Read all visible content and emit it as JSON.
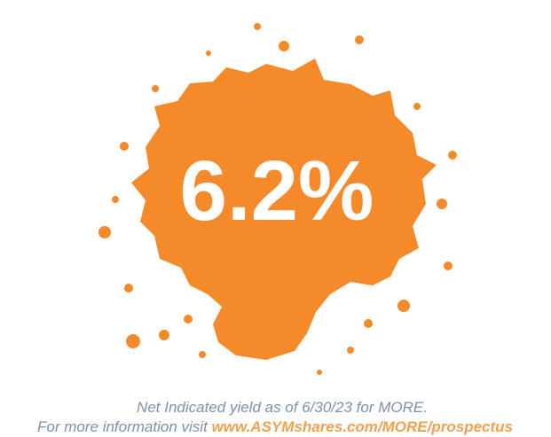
{
  "headline": "6.2%",
  "caption": {
    "line1": "Net Indicated yield as of 6/30/23 for MORE.",
    "line2_prefix": "For more information visit",
    "line2_link": "www.ASYMshares.com/MORE/prospectus"
  }
}
